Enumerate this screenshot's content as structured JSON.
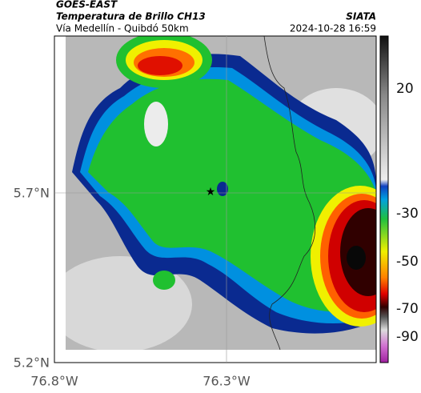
{
  "header": {
    "title": "GOES-EAST",
    "subtitle": "Temperatura de Brillo CH13",
    "route": "Vía Medellín - Quibdó 50km",
    "source": "SIATA",
    "timestamp": "2024-10-28 16:59"
  },
  "map": {
    "lat_labels": [
      "5.7°N",
      "5.2°N"
    ],
    "lon_labels": [
      "76.8°W",
      "76.3°W"
    ]
  },
  "colorbar": {
    "tick_labels": [
      "20",
      "-30",
      "-50",
      "-70",
      "-90"
    ]
  }
}
